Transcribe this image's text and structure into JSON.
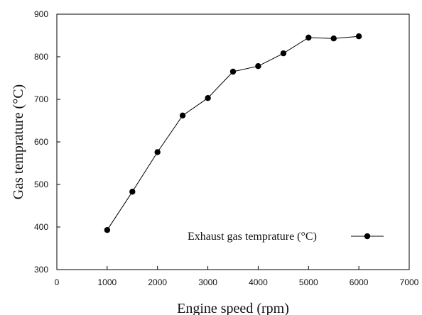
{
  "chart_data": {
    "type": "line",
    "title": "",
    "xlabel": "Engine speed (rpm)",
    "ylabel": "Gas temprature (°C)",
    "xlim": [
      0,
      7000
    ],
    "ylim": [
      300,
      900
    ],
    "xticks": [
      "0",
      "1000",
      "2000",
      "3000",
      "4000",
      "5000",
      "6000",
      "7000"
    ],
    "yticks": [
      "300",
      "400",
      "500",
      "600",
      "700",
      "800",
      "900"
    ],
    "grid": false,
    "legend_position": "bottom-right",
    "series": [
      {
        "name": "Exhaust gas temprature (°C)",
        "marker": "circle",
        "color": "#000000",
        "x": [
          1000,
          1500,
          2000,
          2500,
          3000,
          3500,
          4000,
          4500,
          5000,
          5500,
          6000
        ],
        "y": [
          393,
          483,
          576,
          662,
          703,
          765,
          778,
          808,
          845,
          843,
          848
        ]
      }
    ]
  }
}
